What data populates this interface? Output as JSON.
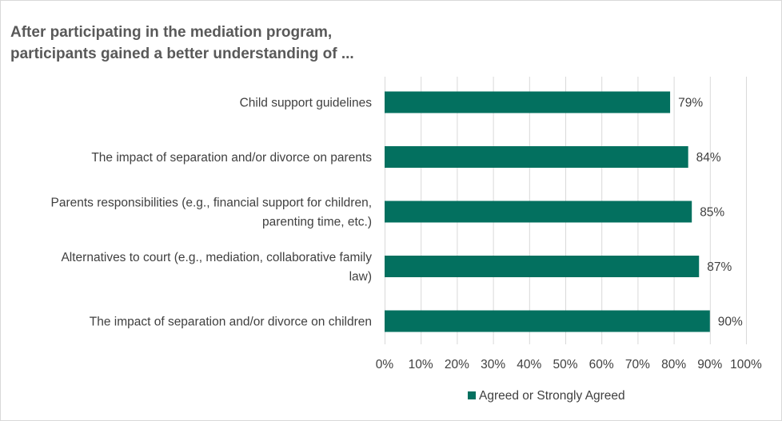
{
  "chart_data": {
    "type": "bar",
    "orientation": "horizontal",
    "title_lines": [
      "After participating in the mediation program,",
      "participants gained a better understanding of ..."
    ],
    "categories": [
      [
        "Child support guidelines"
      ],
      [
        "The impact of separation and/or divorce on parents"
      ],
      [
        "Parents responsibilities (e.g., financial support for children,",
        "parenting time, etc.)"
      ],
      [
        "Alternatives to court (e.g., mediation, collaborative family",
        "law)"
      ],
      [
        "The impact of separation and/or divorce on children"
      ]
    ],
    "series": [
      {
        "name": "Agreed or Strongly Agreed",
        "values": [
          79,
          84,
          85,
          87,
          90
        ],
        "labels": [
          "79%",
          "84%",
          "85%",
          "87%",
          "90%"
        ]
      }
    ],
    "xlim": [
      0,
      100
    ],
    "x_ticks": [
      0,
      10,
      20,
      30,
      40,
      50,
      60,
      70,
      80,
      90,
      100
    ],
    "x_tick_labels": [
      "0%",
      "10%",
      "20%",
      "30%",
      "40%",
      "50%",
      "60%",
      "70%",
      "80%",
      "90%",
      "100%"
    ],
    "grid": "vertical",
    "legend_position": "bottom",
    "colors": {
      "bar": "#03705F",
      "grid": "#d9d9d9"
    }
  }
}
